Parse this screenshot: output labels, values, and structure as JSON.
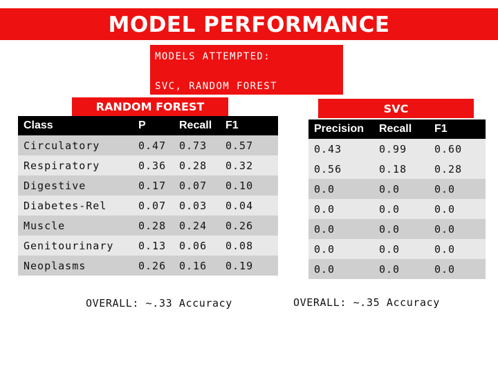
{
  "title": "MODEL PERFORMANCE",
  "models_box": {
    "line1": "MODELS ATTEMPTED:",
    "line2": "SVC, RANDOM FOREST"
  },
  "random_forest": {
    "label": "RANDOM FOREST",
    "headers": [
      "Class",
      "P",
      "Recall",
      "F1"
    ],
    "rows": [
      [
        "Circulatory",
        "0.47",
        "0.73",
        "0.57"
      ],
      [
        "Respiratory",
        "0.36",
        "0.28",
        "0.32"
      ],
      [
        "Digestive",
        "0.17",
        "0.07",
        "0.10"
      ],
      [
        "Diabetes-Rel",
        "0.07",
        "0.03",
        "0.04"
      ],
      [
        "Muscle",
        "0.28",
        "0.24",
        "0.26"
      ],
      [
        "Genitourinary",
        "0.13",
        "0.06",
        "0.08"
      ],
      [
        "Neoplasms",
        "0.26",
        "0.16",
        "0.19"
      ]
    ],
    "overall": "OVERALL: ~.33 Accuracy"
  },
  "svc": {
    "label": "SVC",
    "headers": [
      "Precision",
      "Recall",
      "F1"
    ],
    "rows": [
      [
        "0.43",
        "0.99",
        "0.60"
      ],
      [
        "0.56",
        "0.18",
        "0.28"
      ],
      [
        "0.0",
        "0.0",
        "0.0"
      ],
      [
        "0.0",
        "0.0",
        "0.0"
      ],
      [
        "0.0",
        "0.0",
        "0.0"
      ],
      [
        "0.0",
        "0.0",
        "0.0"
      ],
      [
        "0.0",
        "0.0",
        "0.0"
      ]
    ],
    "overall": "OVERALL: ~.35 Accuracy"
  },
  "colors": {
    "accent": "#ee1111",
    "header_bg": "#000000",
    "row_dark": "#cfcfcf",
    "row_light": "#e8e8e8"
  }
}
